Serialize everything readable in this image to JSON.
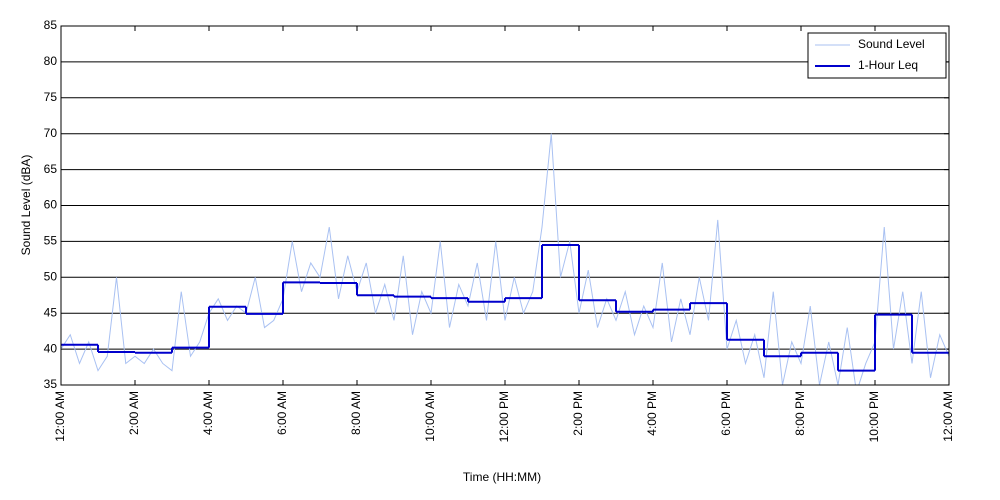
{
  "chart_data": {
    "type": "line",
    "xlabel": "Time (HH:MM)",
    "ylabel": "Sound Level (dBA)",
    "xlim": [
      0,
      24
    ],
    "ylim": [
      35,
      85
    ],
    "xticks": [
      {
        "value": 0,
        "label": "12:00 AM"
      },
      {
        "value": 2,
        "label": "2:00 AM"
      },
      {
        "value": 4,
        "label": "4:00 AM"
      },
      {
        "value": 6,
        "label": "6:00 AM"
      },
      {
        "value": 8,
        "label": "8:00 AM"
      },
      {
        "value": 10,
        "label": "10:00 AM"
      },
      {
        "value": 12,
        "label": "12:00 PM"
      },
      {
        "value": 14,
        "label": "2:00 PM"
      },
      {
        "value": 16,
        "label": "4:00 PM"
      },
      {
        "value": 18,
        "label": "6:00 PM"
      },
      {
        "value": 20,
        "label": "8:00 PM"
      },
      {
        "value": 22,
        "label": "10:00 PM"
      },
      {
        "value": 24,
        "label": "12:00 AM"
      }
    ],
    "yticks": [
      35,
      40,
      45,
      50,
      55,
      60,
      65,
      70,
      75,
      80,
      85
    ],
    "grid": true,
    "legend": "upper right",
    "series": [
      {
        "name": "Sound Level",
        "color": "#a9c1f2",
        "x": [
          0,
          0.25,
          0.5,
          0.75,
          1,
          1.25,
          1.5,
          1.75,
          2,
          2.25,
          2.5,
          2.75,
          3,
          3.25,
          3.5,
          3.75,
          4,
          4.25,
          4.5,
          4.75,
          5,
          5.25,
          5.5,
          5.75,
          6,
          6.25,
          6.5,
          6.75,
          7,
          7.25,
          7.5,
          7.75,
          8,
          8.25,
          8.5,
          8.75,
          9,
          9.25,
          9.5,
          9.75,
          10,
          10.25,
          10.5,
          10.75,
          11,
          11.25,
          11.5,
          11.75,
          12,
          12.25,
          12.5,
          12.75,
          13,
          13.25,
          13.5,
          13.75,
          14,
          14.25,
          14.5,
          14.75,
          15,
          15.25,
          15.5,
          15.75,
          16,
          16.25,
          16.5,
          16.75,
          17,
          17.25,
          17.5,
          17.75,
          18,
          18.25,
          18.5,
          18.75,
          19,
          19.25,
          19.5,
          19.75,
          20,
          20.25,
          20.5,
          20.75,
          21,
          21.25,
          21.5,
          21.75,
          22,
          22.25,
          22.5,
          22.75,
          23,
          23.25,
          23.5,
          23.75,
          24
        ],
        "values": [
          40,
          42,
          38,
          41,
          37,
          39,
          50,
          38,
          39,
          38,
          40,
          38,
          37,
          48,
          39,
          41,
          45,
          47,
          44,
          46,
          45,
          50,
          43,
          44,
          47,
          55,
          48,
          52,
          50,
          57,
          47,
          53,
          48,
          52,
          45,
          49,
          44,
          53,
          42,
          48,
          45,
          55,
          43,
          49,
          46,
          52,
          44,
          55,
          44,
          50,
          45,
          48,
          57,
          70,
          50,
          55,
          45,
          51,
          43,
          47,
          44,
          48,
          42,
          46,
          43,
          52,
          41,
          47,
          42,
          50,
          44,
          58,
          40,
          44,
          38,
          42,
          36,
          48,
          35,
          41,
          38,
          46,
          35,
          41,
          35,
          43,
          34,
          38,
          41,
          57,
          40,
          48,
          38,
          48,
          36,
          42,
          39
        ]
      },
      {
        "name": "1-Hour Leq",
        "color": "#0000cc",
        "drawstyle": "steps-post",
        "x": [
          0,
          1,
          2,
          3,
          4,
          5,
          6,
          7,
          8,
          9,
          10,
          11,
          12,
          13,
          14,
          15,
          16,
          17,
          18,
          19,
          20,
          21,
          22,
          23
        ],
        "values": [
          40.6,
          39.6,
          39.5,
          40.2,
          45.9,
          44.9,
          49.3,
          49.2,
          47.5,
          47.3,
          47.1,
          46.6,
          47.1,
          54.5,
          46.8,
          45.2,
          45.5,
          46.4,
          41.3,
          39.0,
          39.5,
          37.0,
          44.8,
          39.5
        ]
      }
    ]
  }
}
